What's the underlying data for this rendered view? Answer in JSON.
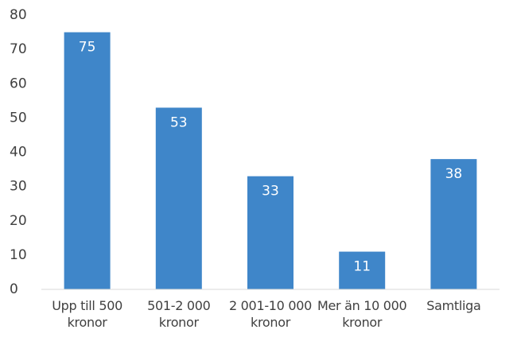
{
  "chart_data": {
    "type": "bar",
    "categories": [
      "Upp till 500 kronor",
      "501-2 000 kronor",
      "2 001-10 000 kronor",
      "Mer än 10 000 kronor",
      "Samtliga"
    ],
    "values": [
      75,
      53,
      33,
      11,
      38
    ],
    "color": "#3f86c9",
    "ylim": [
      0,
      80
    ],
    "yticks": [
      0,
      10,
      20,
      30,
      40,
      50,
      60,
      70,
      80
    ],
    "grid": false
  }
}
